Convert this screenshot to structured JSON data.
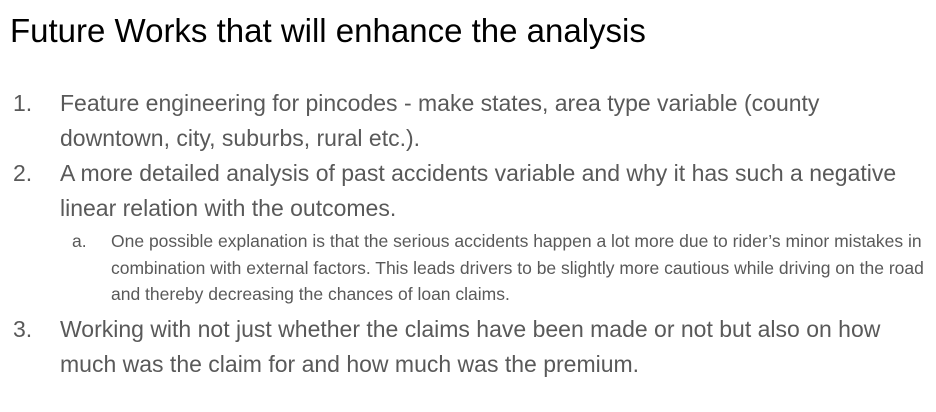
{
  "title": "Future Works that will enhance the analysis",
  "items": [
    {
      "number": "1.",
      "text": "Feature engineering for pincodes - make states, area type variable (county downtown, city, suburbs, rural etc.)."
    },
    {
      "number": "2.",
      "text": "A more detailed analysis of past accidents variable and why it has such a negative linear relation with the outcomes.",
      "sub": {
        "letter": "a.",
        "text": "One possible explanation is that the serious accidents happen a lot more due to rider’s minor mistakes in combination with external factors. This leads drivers to be slightly more cautious while driving on the road and thereby decreasing the chances of loan claims."
      }
    },
    {
      "number": "3.",
      "text": "Working with not just whether the claims have been made or not but also on how much was the claim for and how much was the premium."
    }
  ]
}
